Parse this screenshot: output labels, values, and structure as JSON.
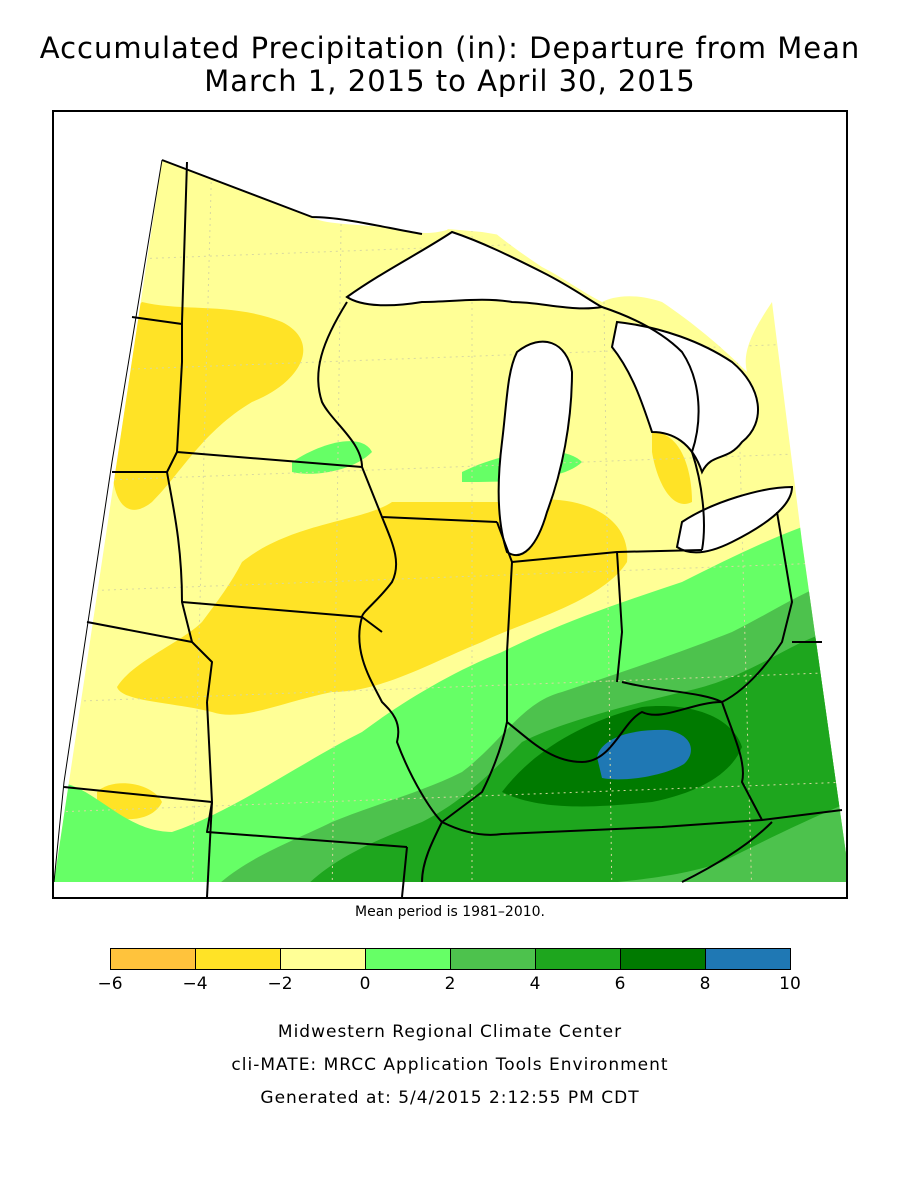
{
  "title": {
    "line1": "Accumulated Precipitation (in): Departure from Mean",
    "line2": "March 1, 2015 to April 30, 2015"
  },
  "note": "Mean period is 1981–2010.",
  "legend": {
    "bins": [
      {
        "from": -6,
        "to": -4,
        "color": "#FFC33C"
      },
      {
        "from": -4,
        "to": -2,
        "color": "#FFE326"
      },
      {
        "from": -2,
        "to": 0,
        "color": "#FFFF96"
      },
      {
        "from": 0,
        "to": 2,
        "color": "#66FF66"
      },
      {
        "from": 2,
        "to": 4,
        "color": "#4DC24D"
      },
      {
        "from": 4,
        "to": 6,
        "color": "#1EA61E"
      },
      {
        "from": 6,
        "to": 8,
        "color": "#007A00"
      },
      {
        "from": 8,
        "to": 10,
        "color": "#1F78B4"
      }
    ],
    "ticks": [
      "−6",
      "−4",
      "−2",
      "0",
      "2",
      "4",
      "6",
      "8",
      "10"
    ]
  },
  "credits": {
    "line1": "Midwestern Regional Climate Center",
    "line2": "cli-MATE: MRCC Application Tools Environment",
    "line3": "Generated at: 5/4/2015 2:12:55 PM CDT"
  }
}
